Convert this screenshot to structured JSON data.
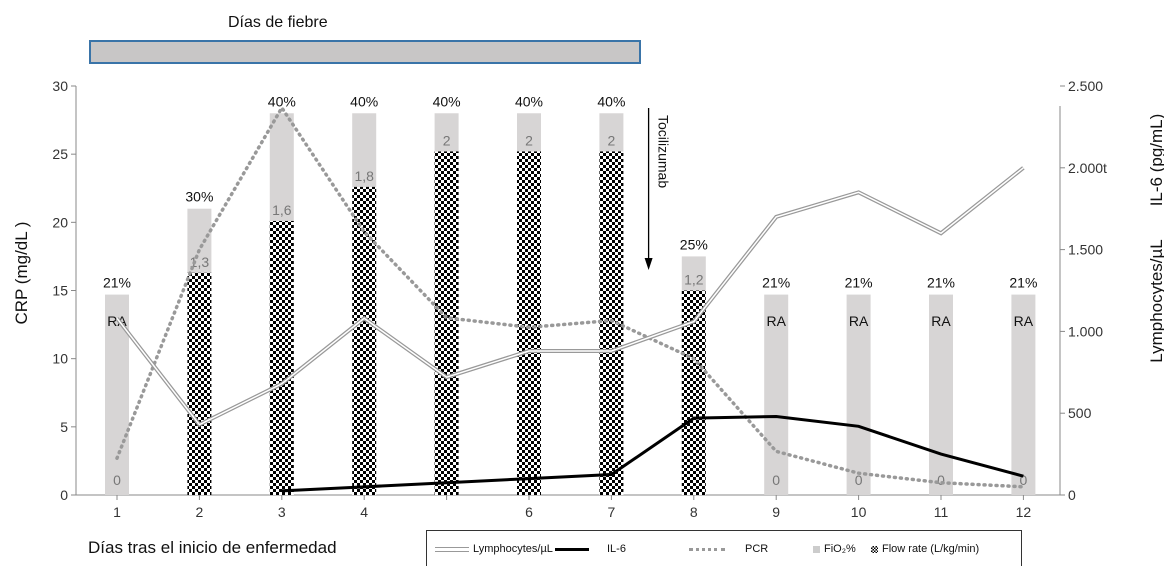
{
  "fever_label": "Días de fiebre",
  "xlabel": "Días tras el inicio de enfermedad",
  "ylabel_left": "CRP (mg/dL )",
  "ylabel_right_top": "IL-6 (pg/mL)",
  "ylabel_right_bottom": "Lymphocytes/µL",
  "annotation": "Tocilizumab",
  "legend": {
    "lymph": "Lymphocytes/µL",
    "il6": "IL-6",
    "pcr": "PCR",
    "fio2": "FiO₂%",
    "flow": "Flow rate (L/kg/min)"
  },
  "colors": {
    "fio2_bar": "#d7d5d5",
    "flow_dark": "#000000",
    "lymph_line": "#999999",
    "pcr_line": "#999999",
    "il6_line": "#000000",
    "fever_bar": "#c8c6c6",
    "fever_border": "#3a74a8"
  },
  "chart_data": {
    "type": "bar",
    "x": [
      1,
      2,
      3,
      4,
      5,
      6,
      7,
      8,
      9,
      10,
      11,
      12
    ],
    "x_tick_labels": [
      "1",
      "2",
      "3",
      "4",
      "",
      "6",
      "7",
      "8",
      "9",
      "10",
      "11",
      "12"
    ],
    "ylim_left": [
      0,
      30
    ],
    "yticks_left": [
      0,
      5,
      10,
      15,
      20,
      25,
      30
    ],
    "ylim_right": [
      0,
      2500
    ],
    "yticks_right": [
      0,
      500,
      1000,
      1500,
      2000,
      2500
    ],
    "yticks_right_labels": [
      "0",
      "500",
      "1.000",
      "1.500",
      "2.000t",
      "2.500"
    ],
    "fio2_bar_values": [
      14.7,
      21,
      28,
      28,
      28,
      28,
      28,
      17.5,
      14.7,
      14.7,
      14.7,
      14.7
    ],
    "fio2_labels": [
      "21%",
      "30%",
      "40%",
      "40%",
      "40%",
      "40%",
      "40%",
      "25%",
      "21%",
      "21%",
      "21%",
      "21%"
    ],
    "flow_bar_values": [
      0,
      16.3,
      20.1,
      22.6,
      25.2,
      25.2,
      25.2,
      15.0,
      0,
      0,
      0,
      0
    ],
    "flow_labels": [
      "0",
      "1,3",
      "1,6",
      "1,8",
      "2",
      "2",
      "2",
      "1,2",
      "0",
      "0",
      "0",
      "0"
    ],
    "ra_days": [
      1,
      9,
      10,
      11,
      12
    ],
    "ra_label": "RA",
    "series": [
      {
        "name": "PCR",
        "axis": "left",
        "style": "dotted",
        "values": [
          2.7,
          18.0,
          28.4,
          19.3,
          13.0,
          12.3,
          12.8,
          10.0,
          3.2,
          1.6,
          0.9,
          0.6
        ]
      },
      {
        "name": "Lymphocytes/µL",
        "axis": "right",
        "style": "double",
        "values": [
          1080,
          430,
          680,
          1080,
          720,
          880,
          880,
          1060,
          1700,
          1850,
          1600,
          2000
        ]
      },
      {
        "name": "IL-6",
        "axis": "right",
        "style": "solid",
        "x": [
          3,
          4,
          5,
          6,
          7,
          8,
          9,
          10,
          11,
          12
        ],
        "values": [
          25,
          50,
          75,
          100,
          125,
          470,
          480,
          420,
          250,
          115
        ]
      }
    ],
    "annotation_day": 7.5
  }
}
